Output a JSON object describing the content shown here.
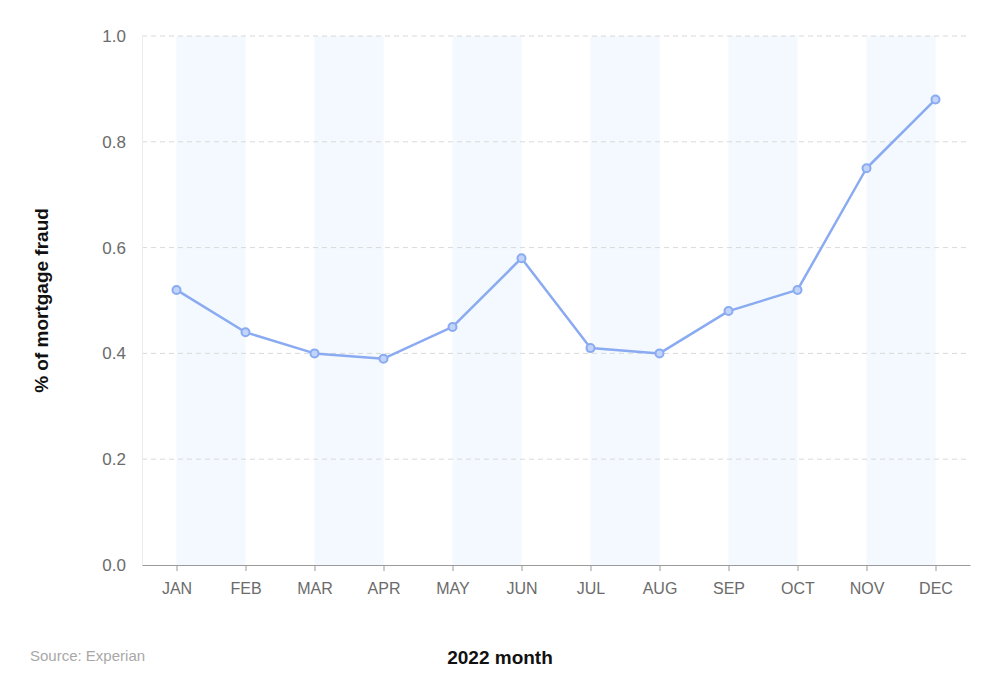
{
  "chart_data": {
    "type": "line",
    "x_label": "2022 month",
    "y_label": "% of mortgage fraud",
    "source": "Source: Experian",
    "categories": [
      "JAN",
      "FEB",
      "MAR",
      "APR",
      "MAY",
      "JUN",
      "JUL",
      "AUG",
      "SEP",
      "OCT",
      "NOV",
      "DEC"
    ],
    "values": [
      0.52,
      0.44,
      0.4,
      0.39,
      0.45,
      0.58,
      0.41,
      0.4,
      0.48,
      0.52,
      0.75,
      0.88
    ],
    "color": "#8aabf2",
    "marker": "circle",
    "ylim": [
      0,
      1
    ],
    "yticks": [
      {
        "value": 0,
        "label": "0.0"
      },
      0.2,
      0.4,
      0.6,
      0.8,
      {
        "value": 1,
        "label": "1.0"
      }
    ],
    "grid": true
  }
}
